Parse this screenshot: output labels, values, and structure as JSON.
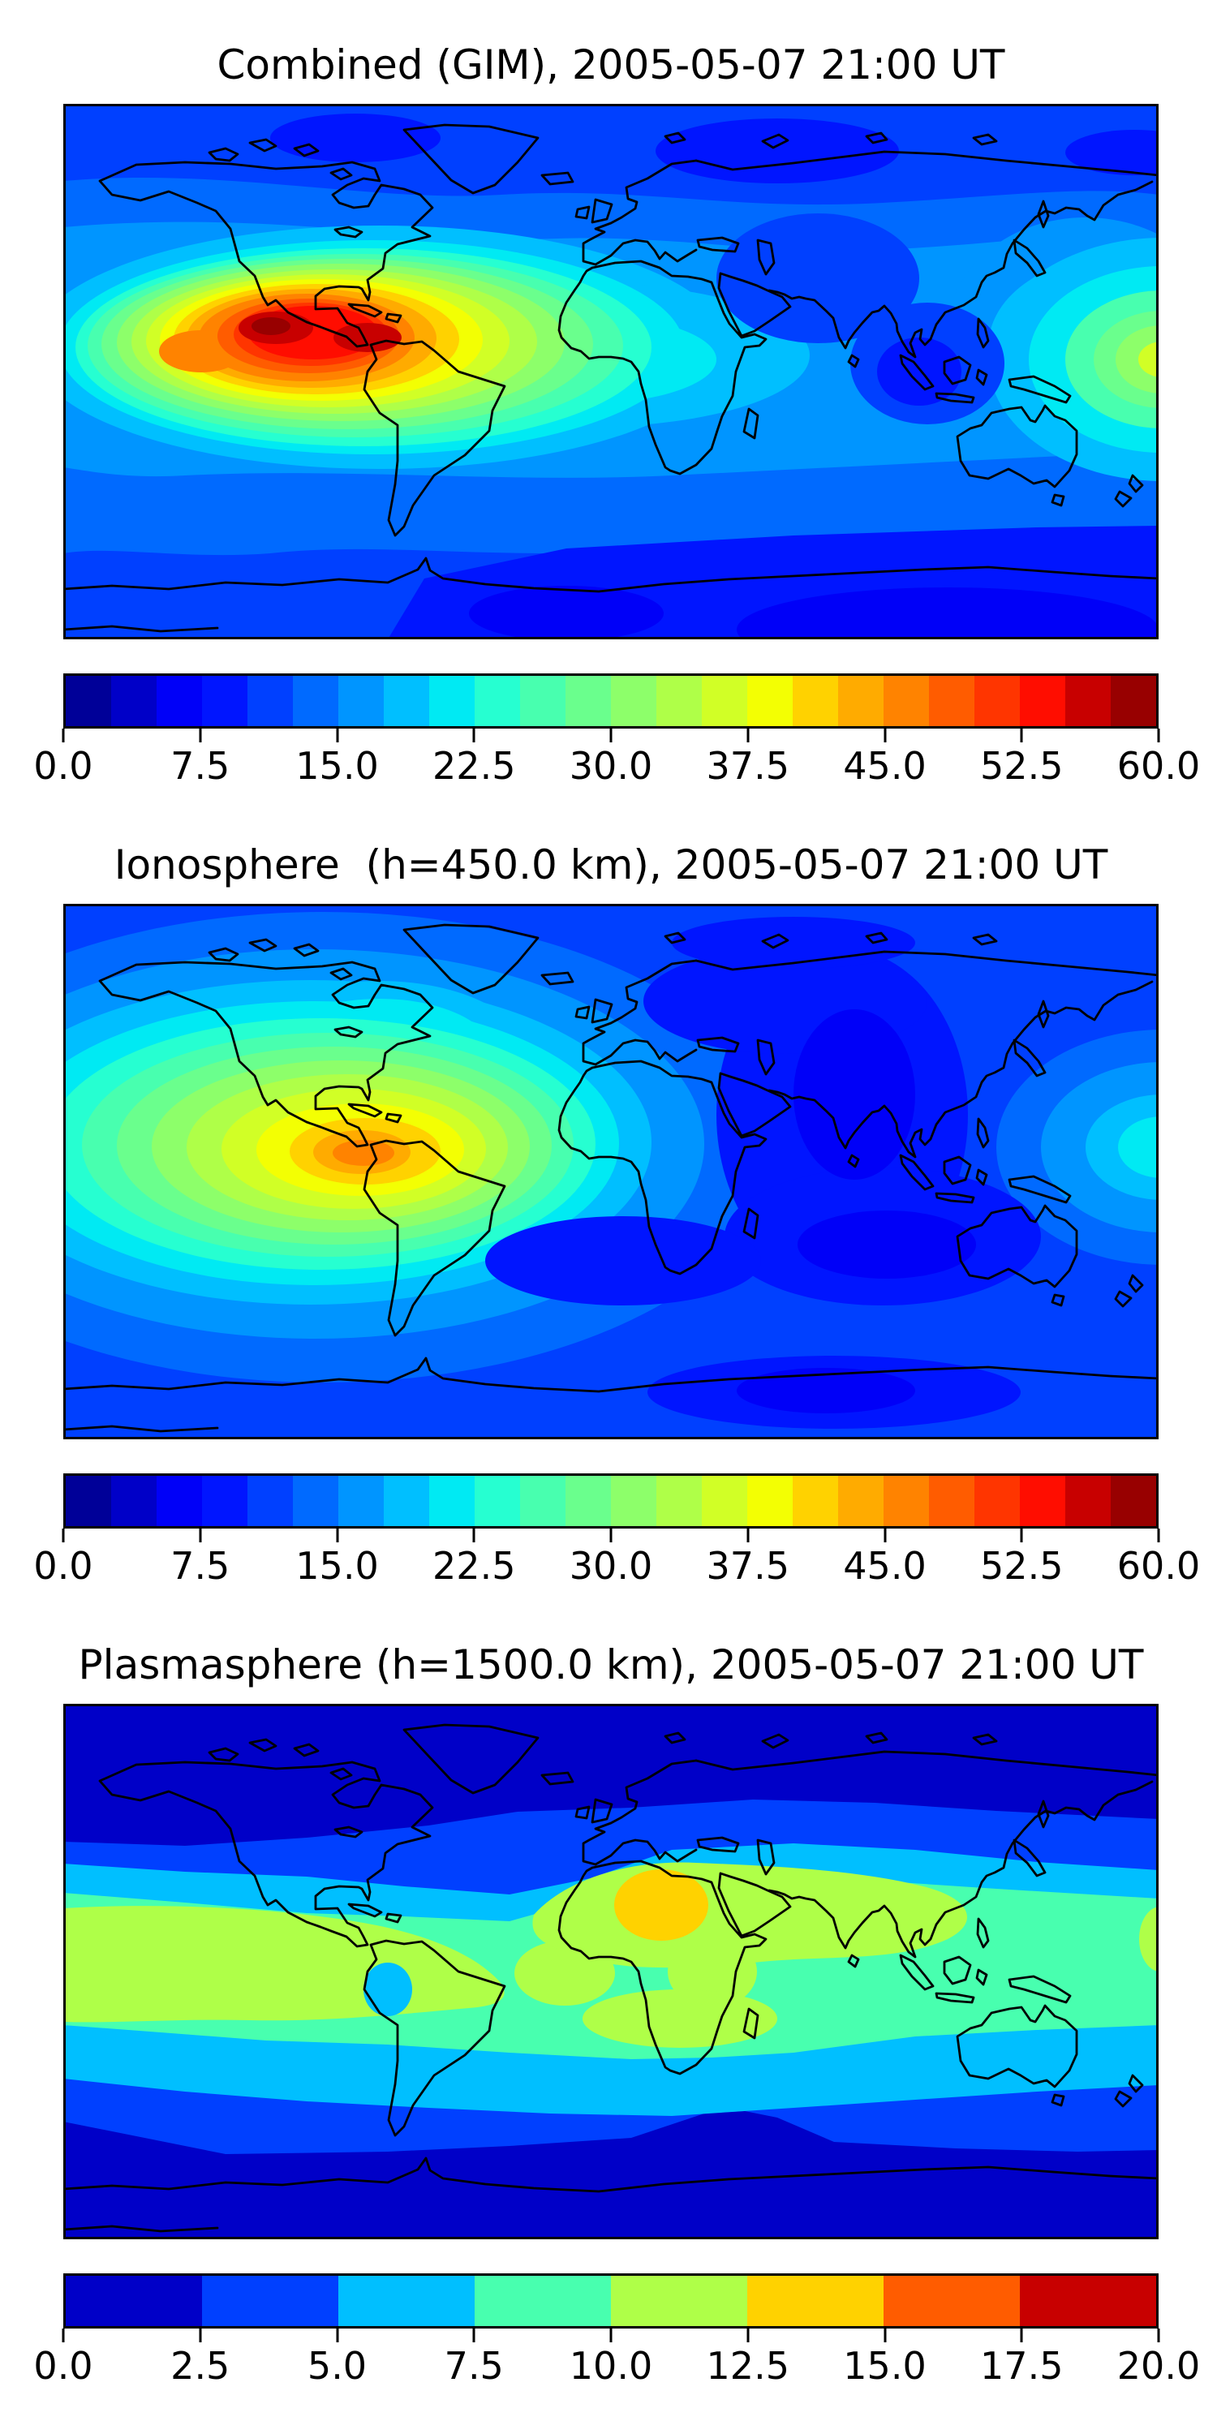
{
  "figure": {
    "background": "#ffffff",
    "text_color": "#000000",
    "colormap": "jet"
  },
  "panels": [
    {
      "id": "combined-gim",
      "title": "Combined (GIM), 2005-05-07 21:00 UT",
      "colorbar": {
        "ticks": [
          "0.0",
          "7.5",
          "15.0",
          "22.5",
          "30.0",
          "37.5",
          "45.0",
          "52.5",
          "60.0"
        ],
        "colors": [
          "#000098",
          "#0000C8",
          "#0000F8",
          "#0015FF",
          "#0040FF",
          "#006AFF",
          "#0095FF",
          "#00BFFF",
          "#00EAF3",
          "#26FFD1",
          "#48FFAF",
          "#6AFF8D",
          "#8DFF6A",
          "#AFFF48",
          "#D1FF26",
          "#F3FF03",
          "#FFD200",
          "#FFAB00",
          "#FF8300",
          "#FF5C00",
          "#FF3500",
          "#FF0D00",
          "#C80000",
          "#980000"
        ]
      }
    },
    {
      "id": "ionosphere",
      "title": "Ionosphere  (h=450.0 km), 2005-05-07 21:00 UT",
      "colorbar": {
        "ticks": [
          "0.0",
          "7.5",
          "15.0",
          "22.5",
          "30.0",
          "37.5",
          "45.0",
          "52.5",
          "60.0"
        ],
        "colors": [
          "#000098",
          "#0000C8",
          "#0000F8",
          "#0015FF",
          "#0040FF",
          "#006AFF",
          "#0095FF",
          "#00BFFF",
          "#00EAF3",
          "#26FFD1",
          "#48FFAF",
          "#6AFF8D",
          "#8DFF6A",
          "#AFFF48",
          "#D1FF26",
          "#F3FF03",
          "#FFD200",
          "#FFAB00",
          "#FF8300",
          "#FF5C00",
          "#FF3500",
          "#FF0D00",
          "#C80000",
          "#980000"
        ]
      }
    },
    {
      "id": "plasmasphere",
      "title": "Plasmasphere (h=1500.0 km), 2005-05-07 21:00 UT",
      "colorbar": {
        "ticks": [
          "0.0",
          "2.5",
          "5.0",
          "7.5",
          "10.0",
          "12.5",
          "15.0",
          "17.5",
          "20.0"
        ],
        "colors": [
          "#0000C8",
          "#0040FF",
          "#00BFFF",
          "#48FFAF",
          "#AFFF48",
          "#FFD200",
          "#FF5C00",
          "#C80000"
        ]
      }
    }
  ],
  "chart_data": [
    {
      "type": "heatmap",
      "title": "Combined (GIM), 2005-05-07 21:00 UT",
      "projection": "equirectangular world map, lon -180..180, lat -90..90, coastlines drawn in black",
      "value_range": [
        0,
        60
      ],
      "colorbar_ticks": [
        0.0,
        7.5,
        15.0,
        22.5,
        30.0,
        37.5,
        45.0,
        52.5,
        60.0
      ],
      "n_color_levels": 24,
      "level_step": 2.5,
      "features": [
        "peak ~55-60 (dark red) over the eastern Pacific just off southern Mexico (~110W, 15N) and over Panama/Colombia (~80W, 10N)",
        "broad orange/yellow enhancement 37-52 spanning ~150W-55W, 10S-25N over Central America and northern South America",
        "secondary orange lobe ~45-47 near 135W, 13N",
        "green/cyan ring 17-32 extending across the equatorial Atlantic and West Africa",
        "enhancement ~25-35 at the 180-degree map edge near the equator",
        "background 7.5-15 over mid/high latitudes",
        "minima <7.5 over Siberia, South-East Asia, the southern ocean and Antarctica (darkest at lower right)"
      ]
    },
    {
      "type": "heatmap",
      "title": "Ionosphere  (h=450.0 km), 2005-05-07 21:00 UT",
      "projection": "equirectangular world map, lon -180..180, lat -90..90, coastlines drawn in black",
      "value_range": [
        0,
        60
      ],
      "colorbar_ticks": [
        0.0,
        7.5,
        15.0,
        22.5,
        30.0,
        37.5,
        45.0,
        52.5,
        60.0
      ],
      "n_color_levels": 24,
      "level_step": 2.5,
      "features": [
        "peak ~40-45 (orange) over Panama/Colombia/Ecuador (~80W, 5-10N)",
        "yellow/green enhancement 25-40 over the eastern Pacific and Caribbean (~140W-55W, 15S-25N)",
        "teal tongue 20-25 extending north along western North America",
        "small cyan enhancement at the 180-degree edge near the equator",
        "deep minimum 2.5-7.5 (dark navy) over Europe, India, the Indian Ocean and south toward Antarctica (night side)",
        "background ~10-15 elsewhere"
      ]
    },
    {
      "type": "heatmap",
      "title": "Plasmasphere (h=1500.0 km), 2005-05-07 21:00 UT",
      "projection": "equirectangular world map, lon -180..180, lat -90..90, coastlines drawn in black",
      "value_range": [
        0,
        20
      ],
      "colorbar_ticks": [
        0.0,
        2.5,
        5.0,
        7.5,
        10.0,
        12.5,
        15.0,
        17.5,
        20.0
      ],
      "n_color_levels": 8,
      "level_step": 2.5,
      "features": [
        "zonal (latitude-parallel) band structure centered on the magnetic equator",
        "peak 12.5-15 (orange-gold oval) over the Sahara (~15E, 22N)",
        "band 10-12.5 (green-yellow) over North Africa/Arabia/South Asia, over southern Africa, and over the eastern Pacific / northwestern South America",
        "broad 7.5-10 (spring green) band spanning all longitudes ~35N-20S",
        "small 5-7.5 cyan spot over northwestern Amazonia",
        "5-7.5 and 2.5-5 bands toward mid-latitudes; polar caps <2.5 (dark navy)"
      ]
    }
  ]
}
